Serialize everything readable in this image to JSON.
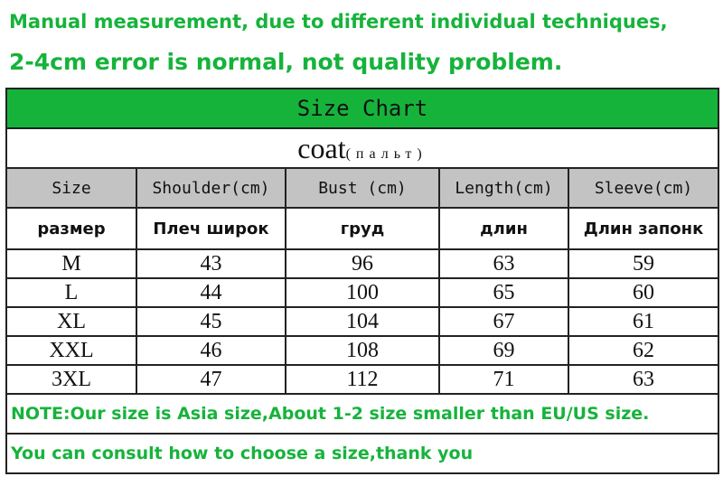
{
  "header": {
    "line1": "Manual measurement, due to different individual techniques,",
    "line2": "2-4cm error is normal, not quality problem."
  },
  "table": {
    "title": "Size Chart",
    "garment": "coat",
    "garment_ru": "(пальт)",
    "columns": [
      "Size",
      "Shoulder(cm)",
      "Bust (cm)",
      "Length(cm)",
      "Sleeve(cm)"
    ],
    "columns_ru": [
      "размер",
      "Плеч широк",
      "груд",
      "длин",
      "Длин запонк"
    ],
    "rows": [
      [
        "M",
        43,
        96,
        63,
        59
      ],
      [
        "L",
        44,
        100,
        65,
        60
      ],
      [
        "XL",
        45,
        104,
        67,
        61
      ],
      [
        "XXL",
        46,
        108,
        69,
        62
      ],
      [
        "3XL",
        47,
        112,
        71,
        63
      ]
    ]
  },
  "footer": {
    "line1": "NOTE:Our size is Asia size,About 1-2 size smaller than EU/US size.",
    "line2": "You can consult how to choose a size,thank you"
  }
}
